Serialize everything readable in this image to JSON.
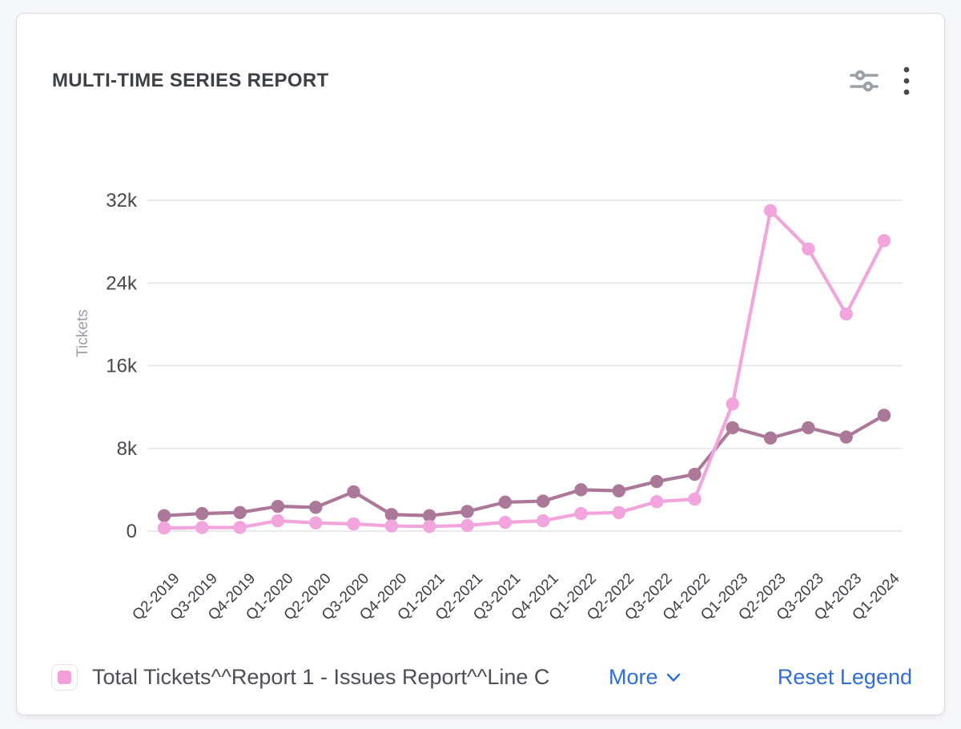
{
  "card": {
    "title": "MULTI-TIME SERIES REPORT",
    "header_icons": [
      {
        "name": "chart-settings-sliders-icon",
        "color": "#9aa0a6"
      },
      {
        "name": "kebab-menu-icon",
        "color": "#46494e"
      }
    ]
  },
  "chart_data": {
    "type": "line",
    "title": "MULTI-TIME SERIES REPORT",
    "xlabel": "",
    "ylabel": "Tickets",
    "ylim": [
      0,
      32000
    ],
    "grid": true,
    "legend_position": "bottom",
    "yticks": [
      {
        "value": 0,
        "label": "0"
      },
      {
        "value": 8000,
        "label": "8k"
      },
      {
        "value": 16000,
        "label": "16k"
      },
      {
        "value": 24000,
        "label": "24k"
      },
      {
        "value": 32000,
        "label": "32k"
      }
    ],
    "categories": [
      "Q2-2019",
      "Q3-2019",
      "Q4-2019",
      "Q1-2020",
      "Q2-2020",
      "Q3-2020",
      "Q4-2020",
      "Q1-2021",
      "Q2-2021",
      "Q3-2021",
      "Q4-2021",
      "Q1-2022",
      "Q2-2022",
      "Q3-2022",
      "Q4-2022",
      "Q1-2023",
      "Q2-2023",
      "Q3-2023",
      "Q4-2023",
      "Q1-2024"
    ],
    "series": [
      {
        "name": "",
        "color": "#AC7899",
        "values": [
          1500,
          1700,
          1800,
          2400,
          2300,
          3800,
          1600,
          1500,
          1900,
          2800,
          2900,
          4000,
          3900,
          4800,
          5500,
          10000,
          9000,
          10000,
          9100,
          11200
        ]
      },
      {
        "name": "Total Tickets^^Report 1 - Issues Report^^Line C",
        "color": "#F2A4DC",
        "values": [
          300,
          350,
          350,
          1000,
          800,
          700,
          500,
          450,
          550,
          850,
          1000,
          1700,
          1800,
          2850,
          3100,
          12300,
          31000,
          27300,
          21000,
          28100
        ]
      }
    ]
  },
  "axis_style": {
    "grid_color": "#e4e4e6",
    "ytick_color": "#46484d",
    "xtick_color": "#3b3e43",
    "axis_title_color": "#9b9ea5"
  },
  "legend": {
    "swatch_color": "#F2A0D8",
    "label": "Total Tickets^^Report 1 - Issues Report^^Line C",
    "more_label": "More",
    "reset_label": "Reset Legend",
    "link_color": "#2F6DDA"
  }
}
